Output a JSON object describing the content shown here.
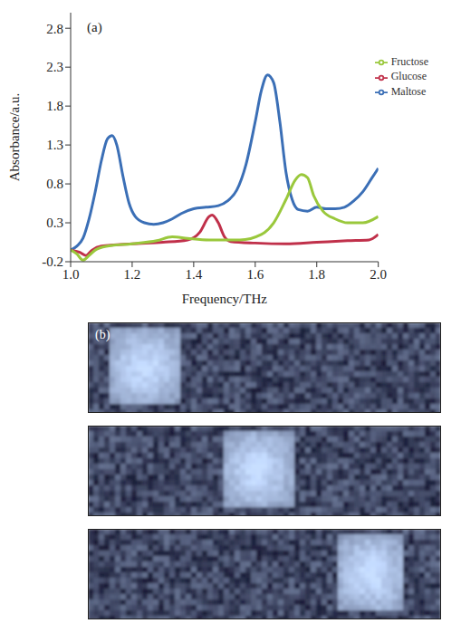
{
  "chart_data": {
    "type": "line",
    "panel_label": "(a)",
    "x_label": "Frequency/THz",
    "y_label": "Absorbance/a.u.",
    "xlim": [
      1.0,
      2.0
    ],
    "xticks": [
      {
        "value": 1.0,
        "label": "1.0"
      },
      1.2,
      1.4,
      1.6,
      1.8,
      {
        "value": 2.0,
        "label": "2.0"
      }
    ],
    "ylim": [
      -0.2,
      3.0
    ],
    "yticks": [
      -0.2,
      0.3,
      0.8,
      1.3,
      1.8,
      2.3,
      2.8
    ],
    "grid": false,
    "legend": "upper right",
    "series": [
      {
        "name": "Maltose",
        "color": "#3b6fb6",
        "x": [
          1.0,
          1.02,
          1.04,
          1.06,
          1.08,
          1.1,
          1.12,
          1.135,
          1.15,
          1.17,
          1.19,
          1.21,
          1.24,
          1.27,
          1.3,
          1.33,
          1.36,
          1.4,
          1.44,
          1.48,
          1.51,
          1.54,
          1.57,
          1.6,
          1.62,
          1.64,
          1.66,
          1.68,
          1.7,
          1.72,
          1.74,
          1.77,
          1.8,
          1.83,
          1.86,
          1.89,
          1.92,
          1.95,
          1.98,
          2.0
        ],
        "values": [
          -0.05,
          0.0,
          0.1,
          0.35,
          0.7,
          1.1,
          1.38,
          1.42,
          1.3,
          0.9,
          0.55,
          0.38,
          0.3,
          0.28,
          0.3,
          0.35,
          0.42,
          0.48,
          0.5,
          0.52,
          0.58,
          0.72,
          1.05,
          1.6,
          2.0,
          2.2,
          2.1,
          1.6,
          0.95,
          0.6,
          0.47,
          0.45,
          0.5,
          0.48,
          0.48,
          0.5,
          0.58,
          0.7,
          0.88,
          1.0
        ]
      },
      {
        "name": "Glucose",
        "color": "#c0304a",
        "x": [
          1.0,
          1.03,
          1.05,
          1.07,
          1.1,
          1.2,
          1.3,
          1.38,
          1.42,
          1.45,
          1.46,
          1.48,
          1.5,
          1.52,
          1.6,
          1.7,
          1.8,
          1.9,
          1.97,
          2.0
        ],
        "values": [
          -0.05,
          -0.08,
          -0.12,
          -0.05,
          0.0,
          0.03,
          0.05,
          0.08,
          0.18,
          0.38,
          0.4,
          0.3,
          0.12,
          0.06,
          0.04,
          0.03,
          0.05,
          0.07,
          0.08,
          0.15
        ]
      },
      {
        "name": "Fructose",
        "color": "#9ac83c",
        "x": [
          1.0,
          1.02,
          1.04,
          1.06,
          1.08,
          1.12,
          1.2,
          1.28,
          1.33,
          1.38,
          1.45,
          1.55,
          1.62,
          1.66,
          1.7,
          1.73,
          1.75,
          1.77,
          1.79,
          1.82,
          1.86,
          1.9,
          1.95,
          2.0
        ],
        "values": [
          -0.05,
          -0.1,
          -0.18,
          -0.12,
          -0.05,
          0.0,
          0.03,
          0.07,
          0.12,
          0.1,
          0.08,
          0.08,
          0.15,
          0.3,
          0.6,
          0.85,
          0.92,
          0.88,
          0.65,
          0.45,
          0.35,
          0.3,
          0.3,
          0.38
        ]
      }
    ]
  },
  "image_panel": {
    "panel_label": "(b)"
  }
}
